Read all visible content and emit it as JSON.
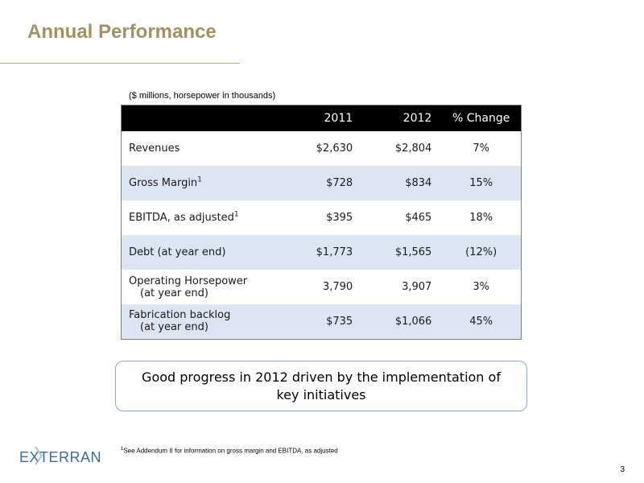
{
  "slide": {
    "title": "Annual Performance",
    "units_note": "($ millions, horsepower in thousands)",
    "page_number": "3"
  },
  "table": {
    "headers": [
      "",
      "2011",
      "2012",
      "% Change"
    ],
    "rows": [
      {
        "label": "Revenues",
        "label_line2": "",
        "footnote": "",
        "v2011": "$2,630",
        "v2012": "$2,804",
        "change": "7%"
      },
      {
        "label": "Gross Margin",
        "label_line2": "",
        "footnote": "1",
        "v2011": "$728",
        "v2012": "$834",
        "change": "15%"
      },
      {
        "label": "EBITDA, as adjusted",
        "label_line2": "",
        "footnote": "1",
        "v2011": "$395",
        "v2012": "$465",
        "change": "18%"
      },
      {
        "label": "Debt (at year end)",
        "label_line2": "",
        "footnote": "",
        "v2011": "$1,773",
        "v2012": "$1,565",
        "change": "(12%)"
      },
      {
        "label": "Operating Horsepower",
        "label_line2": "(at year end)",
        "footnote": "",
        "v2011": "3,790",
        "v2012": "3,907",
        "change": "3%"
      },
      {
        "label": "Fabrication backlog",
        "label_line2": "(at year end)",
        "footnote": "",
        "v2011": "$735",
        "v2012": "$1,066",
        "change": "45%"
      }
    ]
  },
  "callout": {
    "text": "Good progress in 2012 driven by the implementation of key initiatives"
  },
  "footnote": {
    "marker": "1",
    "text": "See Addendum II for information on gross margin and EBITDA, as adjusted"
  },
  "logo": {
    "text": "EXTERRAN",
    "color": "#3b6aa8"
  }
}
